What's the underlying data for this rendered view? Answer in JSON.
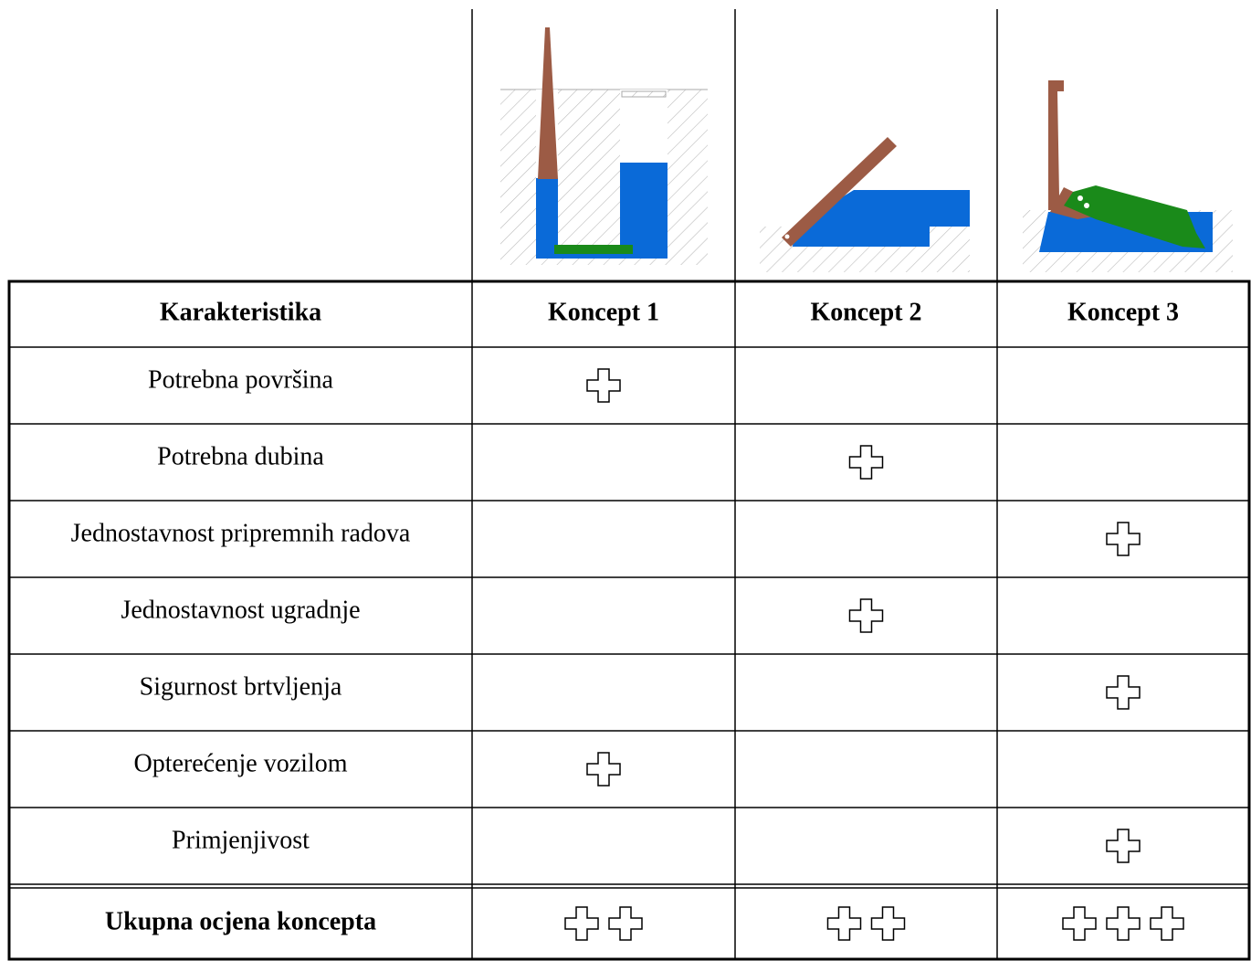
{
  "table": {
    "header": [
      "Karakteristika",
      "Koncept 1",
      "Koncept 2",
      "Koncept 3"
    ],
    "rows": [
      {
        "label": "Potrebna površina",
        "marks": [
          1,
          0,
          0
        ]
      },
      {
        "label": "Potrebna dubina",
        "marks": [
          0,
          1,
          0
        ]
      },
      {
        "label": "Jednostavnost pripremnih radova",
        "marks": [
          0,
          0,
          1
        ]
      },
      {
        "label": "Jednostavnost ugradnje",
        "marks": [
          0,
          1,
          0
        ]
      },
      {
        "label": "Sigurnost brtvljenja",
        "marks": [
          0,
          0,
          1
        ]
      },
      {
        "label": "Opterećenje vozilom",
        "marks": [
          1,
          0,
          0
        ]
      },
      {
        "label": "Primjenjivost",
        "marks": [
          0,
          0,
          1
        ]
      }
    ],
    "total": {
      "label": "Ukupna ocjena koncepta",
      "marks": [
        2,
        2,
        3
      ]
    }
  }
}
